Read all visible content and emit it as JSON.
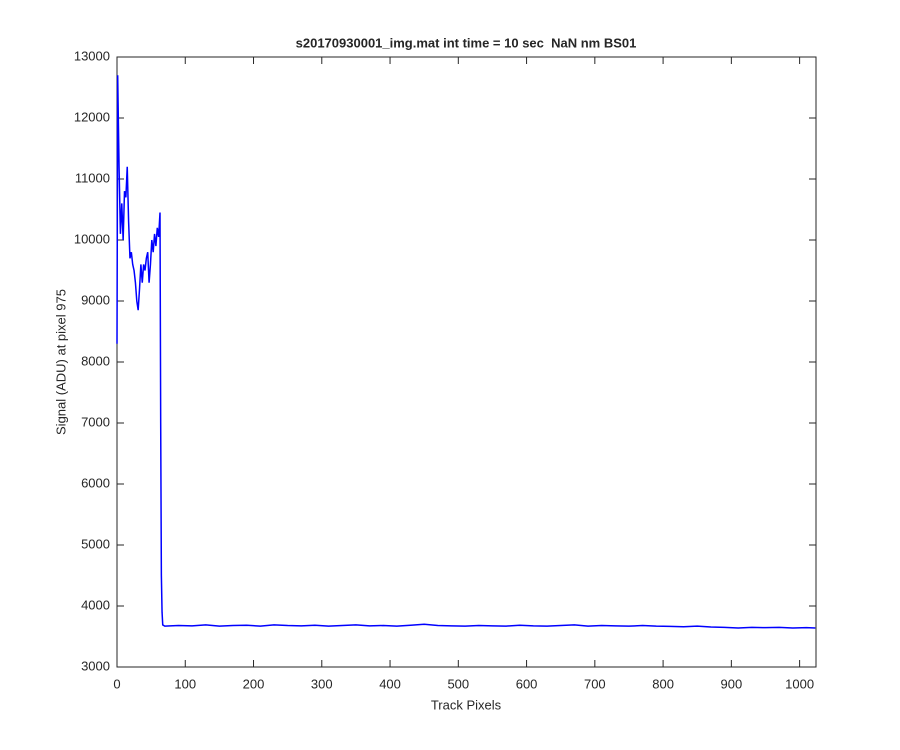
{
  "chart_data": {
    "type": "line",
    "title": "s20170930001_img.mat int time = 10 sec  NaN nm BS01",
    "xlabel": "Track Pixels",
    "ylabel": "Signal (ADU) at pixel 975",
    "xlim": [
      0,
      1024
    ],
    "ylim": [
      3000,
      13000
    ],
    "xticks": [
      0,
      100,
      200,
      300,
      400,
      500,
      600,
      700,
      800,
      900,
      1000
    ],
    "yticks": [
      3000,
      4000,
      5000,
      6000,
      7000,
      8000,
      9000,
      10000,
      11000,
      12000,
      13000
    ],
    "x": [
      0,
      1,
      3,
      5,
      7,
      9,
      11,
      13,
      15,
      17,
      19,
      21,
      23,
      25,
      27,
      29,
      31,
      33,
      35,
      37,
      39,
      41,
      43,
      45,
      47,
      49,
      51,
      53,
      55,
      57,
      59,
      61,
      63,
      64,
      65,
      66,
      67,
      70,
      90,
      110,
      130,
      150,
      170,
      190,
      210,
      230,
      250,
      270,
      290,
      310,
      330,
      350,
      370,
      390,
      410,
      430,
      450,
      470,
      490,
      510,
      530,
      550,
      570,
      590,
      610,
      630,
      650,
      670,
      690,
      710,
      730,
      750,
      770,
      790,
      810,
      830,
      850,
      870,
      890,
      910,
      930,
      950,
      970,
      990,
      1010,
      1023
    ],
    "series": [
      {
        "color": "#0000ff",
        "values": [
          8300,
          12700,
          11200,
          10100,
          10600,
          10000,
          10800,
          10700,
          11200,
          10300,
          9700,
          9800,
          9600,
          9500,
          9300,
          9000,
          8850,
          9200,
          9600,
          9300,
          9600,
          9500,
          9700,
          9800,
          9300,
          9600,
          10000,
          9800,
          10100,
          9900,
          10200,
          10050,
          10450,
          7000,
          4500,
          3900,
          3690,
          3670,
          3680,
          3675,
          3690,
          3670,
          3680,
          3685,
          3670,
          3690,
          3680,
          3675,
          3685,
          3670,
          3680,
          3690,
          3675,
          3680,
          3670,
          3685,
          3700,
          3680,
          3675,
          3670,
          3680,
          3675,
          3670,
          3685,
          3675,
          3670,
          3680,
          3690,
          3670,
          3680,
          3675,
          3670,
          3680,
          3670,
          3665,
          3660,
          3670,
          3655,
          3650,
          3640,
          3650,
          3645,
          3650,
          3640,
          3645,
          3640
        ]
      }
    ]
  }
}
